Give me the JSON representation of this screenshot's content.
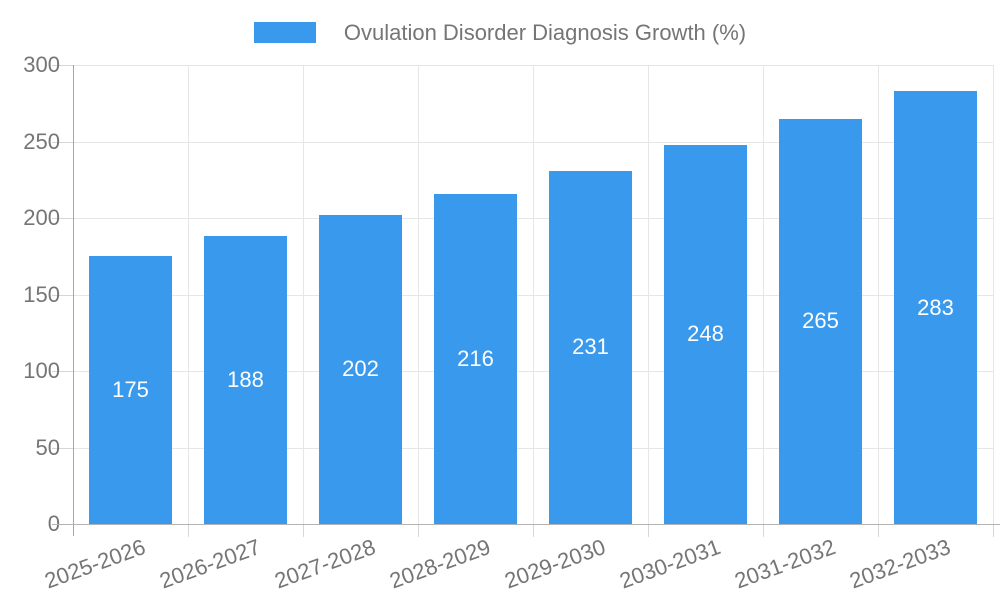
{
  "chart_data": {
    "type": "bar",
    "title": "Ovulation Disorder Diagnosis Growth (%)",
    "categories": [
      "2025-2026",
      "2026-2027",
      "2027-2028",
      "2028-2029",
      "2029-2030",
      "2030-2031",
      "2031-2032",
      "2032-2033"
    ],
    "values": [
      175,
      188,
      202,
      216,
      231,
      248,
      265,
      283
    ],
    "xlabel": "",
    "ylabel": "",
    "ylim": [
      0,
      300
    ],
    "ytick_step": 50,
    "yticks": [
      0,
      50,
      100,
      150,
      200,
      250,
      300
    ],
    "grid": "on",
    "legend_position": "top-center",
    "colors": {
      "bar": "#3899ed",
      "value_label": "#ffffff",
      "axis_text": "#757575",
      "grid": "#e6e6e6",
      "axis_line": "#a6a6a6",
      "tick": "#d6d6d6"
    }
  }
}
